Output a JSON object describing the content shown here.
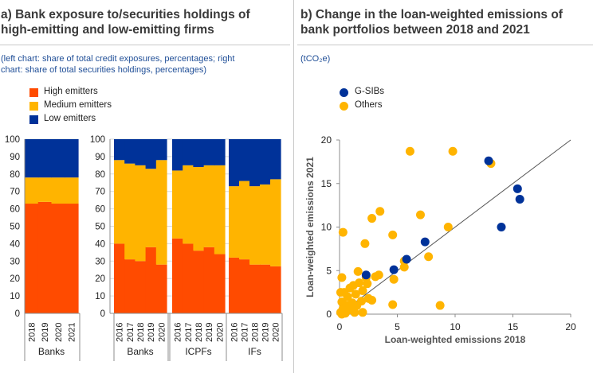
{
  "panel_a": {
    "title_line1": "a) Bank exposure to/securities holdings of",
    "title_line2": "high-emitting and low-emitting firms",
    "subtitle_line1": "(left chart: share of total credit exposures, percentages; right",
    "subtitle_line2": "chart: share of total  securities holdings, percentages)",
    "legend": [
      "High emitters",
      "Medium emitters",
      "Low emitters"
    ]
  },
  "panel_b": {
    "title_line1": "b) Change in the loan-weighted emissions of",
    "title_line2": "bank portfolios between 2018 and 2021",
    "subtitle": "(tCO₂e)",
    "legend": [
      "G-SIBs",
      "Others"
    ]
  },
  "colors": {
    "high": "#ff4b00",
    "medium": "#ffb400",
    "low": "#003299",
    "gsib": "#003299",
    "others": "#ffb400",
    "grid": "#d9d9d9"
  },
  "chart_data": [
    {
      "type": "bar",
      "stacked": true,
      "title": "Share of total credit exposures",
      "ylim": [
        0,
        100
      ],
      "yticks": [
        0,
        10,
        20,
        30,
        40,
        50,
        60,
        70,
        80,
        90,
        100
      ],
      "groups": [
        {
          "label": "Banks",
          "categories": [
            "2018",
            "2019",
            "2020",
            "2021"
          ],
          "series": [
            {
              "name": "High emitters",
              "values": [
                63,
                64,
                63,
                63
              ]
            },
            {
              "name": "Medium emitters",
              "values": [
                15,
                14,
                15,
                15
              ]
            },
            {
              "name": "Low emitters",
              "values": [
                22,
                22,
                22,
                22
              ]
            }
          ]
        }
      ]
    },
    {
      "type": "bar",
      "stacked": true,
      "title": "Share of total securities holdings",
      "ylim": [
        0,
        100
      ],
      "yticks": [
        0,
        10,
        20,
        30,
        40,
        50,
        60,
        70,
        80,
        90,
        100
      ],
      "groups": [
        {
          "label": "Banks",
          "categories": [
            "2016",
            "2017",
            "2018",
            "2019",
            "2020"
          ],
          "series": [
            {
              "name": "High emitters",
              "values": [
                40,
                31,
                30,
                38,
                28
              ]
            },
            {
              "name": "Medium emitters",
              "values": [
                48,
                55,
                55,
                45,
                60
              ]
            },
            {
              "name": "Low emitters",
              "values": [
                12,
                14,
                15,
                17,
                12
              ]
            }
          ]
        },
        {
          "label": "ICPFs",
          "categories": [
            "2016",
            "2017",
            "2018",
            "2019",
            "2020"
          ],
          "series": [
            {
              "name": "High emitters",
              "values": [
                43,
                40,
                36,
                38,
                34
              ]
            },
            {
              "name": "Medium emitters",
              "values": [
                39,
                45,
                48,
                47,
                51
              ]
            },
            {
              "name": "Low emitters",
              "values": [
                18,
                15,
                16,
                15,
                15
              ]
            }
          ]
        },
        {
          "label": "IFs",
          "categories": [
            "2016",
            "2017",
            "2018",
            "2019",
            "2020"
          ],
          "series": [
            {
              "name": "High emitters",
              "values": [
                32,
                31,
                28,
                28,
                27
              ]
            },
            {
              "name": "Medium emitters",
              "values": [
                41,
                45,
                45,
                46,
                50
              ]
            },
            {
              "name": "Low emitters",
              "values": [
                27,
                24,
                27,
                26,
                23
              ]
            }
          ]
        }
      ]
    },
    {
      "type": "scatter",
      "title": "Change in the loan-weighted emissions of bank portfolios between 2018 and 2021",
      "xlabel": "Loan-weighted emissions 2018",
      "ylabel": "Loan-weighted emissions 2021",
      "xlim": [
        0,
        20
      ],
      "ylim": [
        0,
        20
      ],
      "xticks": [
        0,
        5,
        10,
        15,
        20
      ],
      "yticks": [
        0,
        5,
        10,
        15,
        20
      ],
      "reference_line": "45-degree",
      "series": [
        {
          "name": "G-SIBs",
          "points": [
            [
              12.9,
              17.6
            ],
            [
              15.4,
              14.4
            ],
            [
              15.6,
              13.2
            ],
            [
              14.0,
              10.0
            ],
            [
              7.4,
              8.3
            ],
            [
              5.8,
              6.3
            ],
            [
              4.7,
              5.1
            ],
            [
              2.3,
              4.5
            ]
          ]
        },
        {
          "name": "Others",
          "points": [
            [
              6.1,
              18.7
            ],
            [
              9.8,
              18.7
            ],
            [
              13.1,
              17.3
            ],
            [
              3.5,
              11.8
            ],
            [
              2.8,
              11.0
            ],
            [
              7.0,
              11.4
            ],
            [
              9.4,
              10.0
            ],
            [
              0.3,
              9.4
            ],
            [
              4.6,
              9.1
            ],
            [
              2.2,
              8.1
            ],
            [
              7.7,
              6.6
            ],
            [
              5.6,
              6.1
            ],
            [
              5.6,
              5.4
            ],
            [
              1.6,
              4.9
            ],
            [
              2.3,
              4.2
            ],
            [
              3.1,
              4.3
            ],
            [
              3.4,
              4.5
            ],
            [
              0.2,
              4.2
            ],
            [
              4.7,
              4.0
            ],
            [
              2.4,
              3.5
            ],
            [
              1.2,
              3.3
            ],
            [
              0.9,
              3.0
            ],
            [
              1.7,
              3.6
            ],
            [
              0.1,
              2.5
            ],
            [
              0.4,
              2.5
            ],
            [
              2.0,
              2.7
            ],
            [
              0.7,
              2.0
            ],
            [
              1.4,
              2.3
            ],
            [
              2.5,
              1.8
            ],
            [
              2.8,
              1.6
            ],
            [
              1.9,
              1.5
            ],
            [
              0.2,
              1.4
            ],
            [
              1.1,
              1.3
            ],
            [
              0.6,
              1.0
            ],
            [
              1.5,
              1.0
            ],
            [
              4.6,
              1.1
            ],
            [
              8.7,
              1.0
            ],
            [
              0.3,
              0.6
            ],
            [
              0.9,
              0.5
            ],
            [
              1.3,
              0.2
            ],
            [
              0.1,
              0.2
            ],
            [
              0.5,
              0.1
            ],
            [
              2.0,
              0.2
            ],
            [
              0.2,
              0.0
            ]
          ]
        }
      ]
    }
  ]
}
